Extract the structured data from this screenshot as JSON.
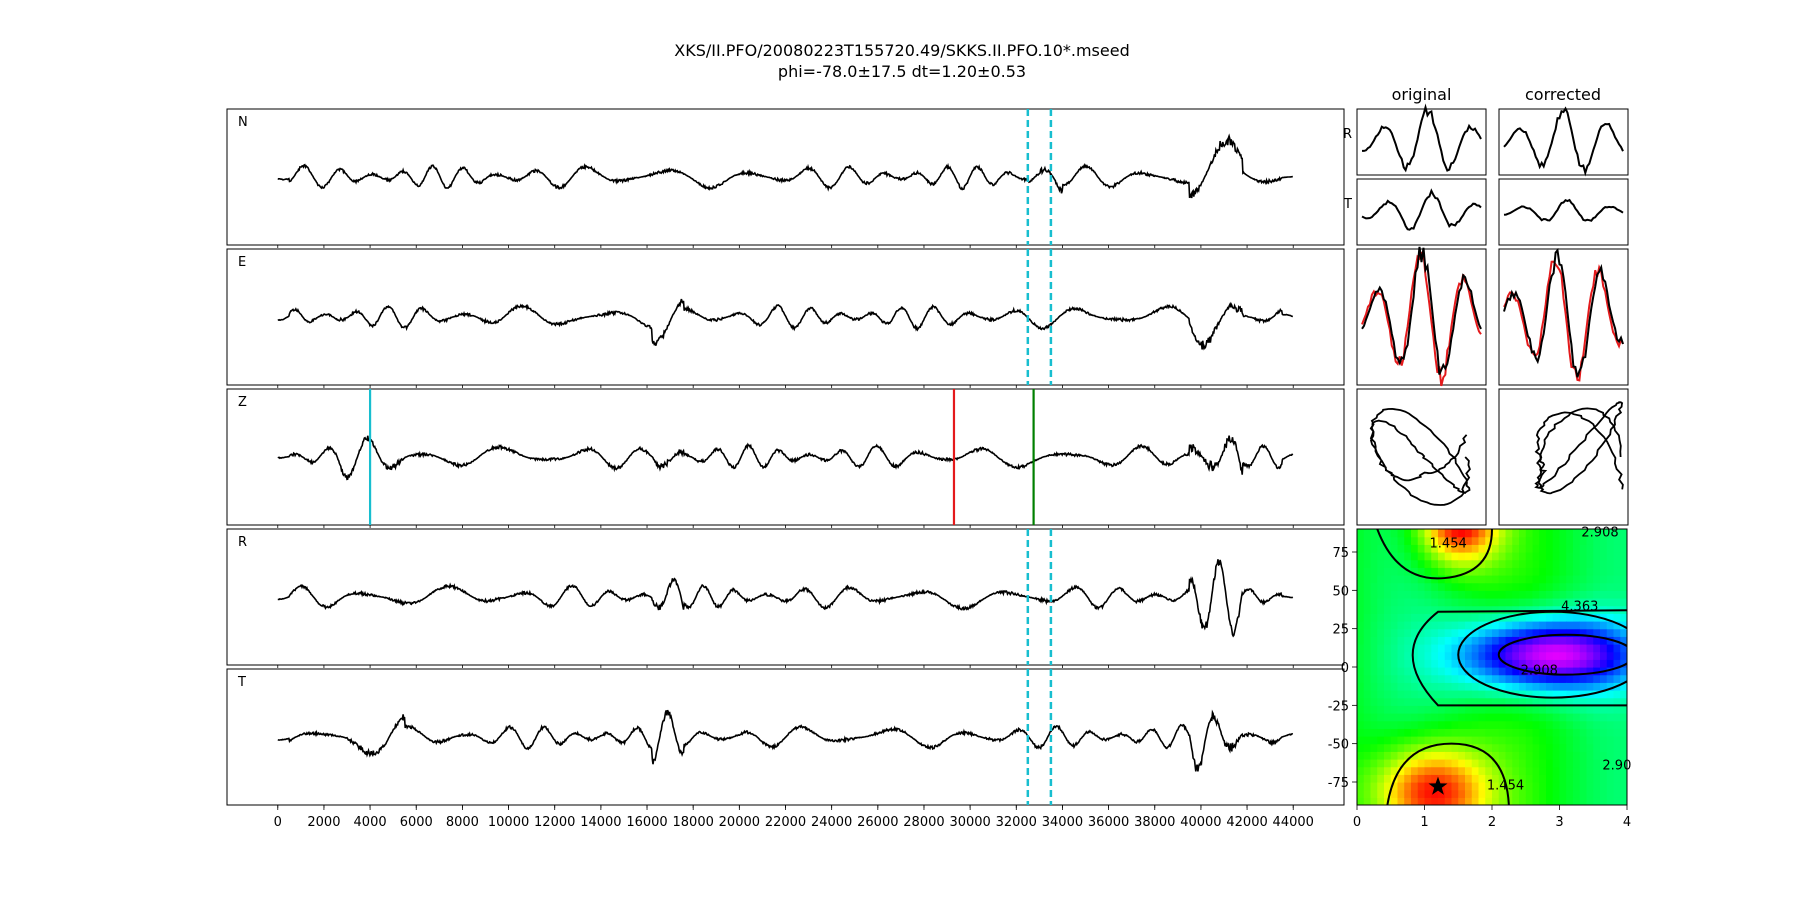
{
  "title_line1": "XKS/II.PFO/20080223T155720.49/SKKS.II.PFO.10*.mseed",
  "title_line2": "phi=-78.0±17.5 dt=1.20±0.53",
  "col_original": "original",
  "col_corrected": "corrected",
  "chart_data": [
    {
      "type": "line",
      "panel": "waveforms",
      "series": [
        {
          "name": "N",
          "label": "N"
        },
        {
          "name": "E",
          "label": "E"
        },
        {
          "name": "Z",
          "label": "Z"
        },
        {
          "name": "R",
          "label": "R"
        },
        {
          "name": "T",
          "label": "T"
        }
      ],
      "xlim": [
        -2200,
        46200
      ],
      "xticks": [
        0,
        2000,
        4000,
        6000,
        8000,
        10000,
        12000,
        14000,
        16000,
        18000,
        20000,
        22000,
        24000,
        26000,
        28000,
        30000,
        32000,
        34000,
        36000,
        38000,
        40000,
        42000,
        44000
      ],
      "window_lines": {
        "color": "#17becf",
        "x": [
          32500,
          33500
        ],
        "style": "dashed",
        "panels": [
          "N",
          "E",
          "R",
          "T"
        ]
      },
      "phase_markers": [
        {
          "x": 4000,
          "color": "#17becf"
        },
        {
          "x": 29300,
          "color": "#e41a1c"
        },
        {
          "x": 32750,
          "color": "#008000"
        }
      ]
    },
    {
      "type": "line",
      "panel": "particle-motion",
      "series": [
        {
          "name": "R",
          "label": "R"
        },
        {
          "name": "T",
          "label": "T"
        }
      ],
      "columns": [
        "original",
        "corrected"
      ],
      "colors": {
        "main": "#000000",
        "overlay": "#e41a1c"
      }
    },
    {
      "type": "heatmap",
      "panel": "error-surface",
      "xlim": [
        0,
        4
      ],
      "ylim": [
        -90,
        90
      ],
      "xticks": [
        0,
        1,
        2,
        3,
        4
      ],
      "yticks": [
        -75,
        -50,
        -25,
        0,
        25,
        50,
        75
      ],
      "contour_labels": [
        "1.454",
        "2.908",
        "4.363",
        "2.908",
        "1.454",
        "2.90"
      ],
      "best_fit": {
        "dt": 1.2,
        "phi": -78.0
      },
      "colormap": "hsv"
    }
  ]
}
